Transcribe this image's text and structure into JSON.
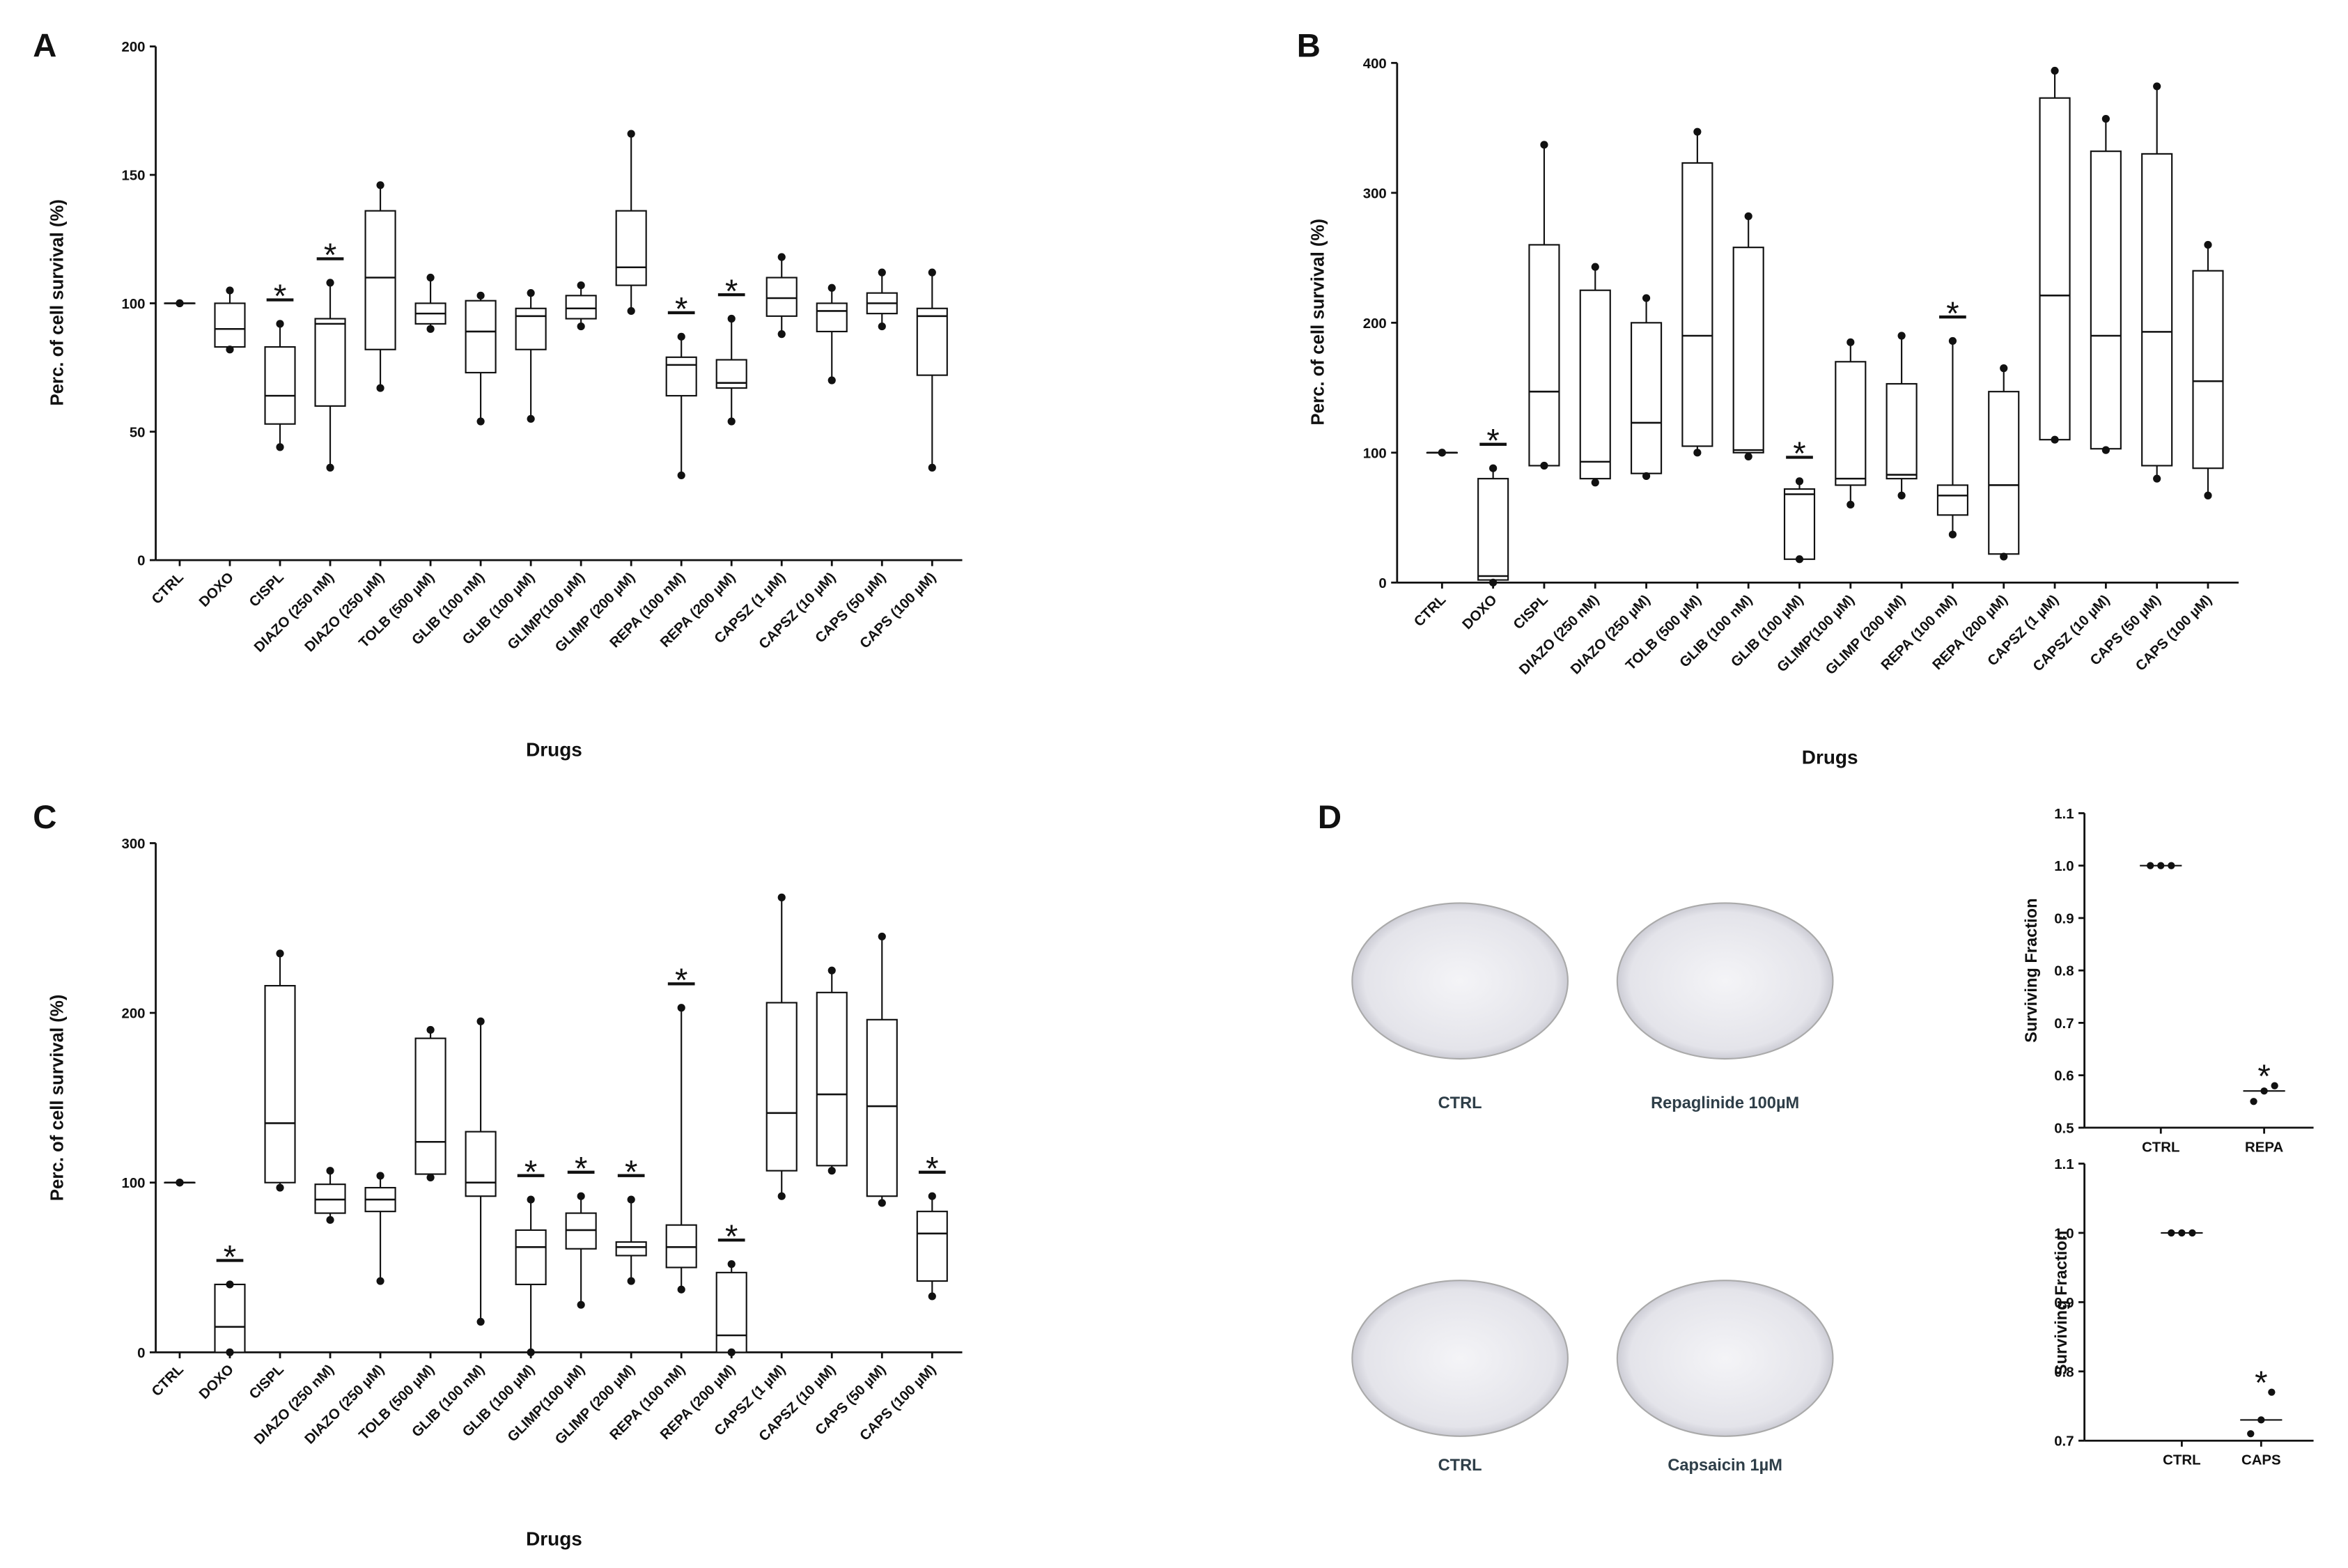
{
  "chart_data": [
    {
      "type": "box",
      "panel": "A",
      "ylabel": "Perc. of cell survival (%)",
      "xlabel": "Drugs",
      "categories": [
        "CTRL",
        "DOXO",
        "CISPL",
        "DIAZO (250 nM)",
        "DIAZO (250 µM)",
        "TOLB (500 µM)",
        "GLIB (100 nM)",
        "GLIB (100 µM)",
        "GLIMP(100 µM)",
        "GLIMP (200 µM)",
        "REPA (100 nM)",
        "REPA (200 µM)",
        "CAPSZ (1 µM)",
        "CAPSZ (10 µM)",
        "CAPS (50 µM)",
        "CAPS (100 µM)"
      ],
      "ylim": [
        0,
        200
      ],
      "yticks": [
        0,
        50,
        100,
        150,
        200
      ],
      "boxes": [
        [
          100,
          100,
          100,
          100,
          100
        ],
        [
          82,
          83,
          90,
          100,
          105
        ],
        [
          44,
          53,
          64,
          83,
          92
        ],
        [
          36,
          60,
          92,
          94,
          108
        ],
        [
          67,
          82,
          110,
          136,
          146
        ],
        [
          90,
          92,
          96,
          100,
          110
        ],
        [
          54,
          73,
          89,
          101,
          103
        ],
        [
          55,
          82,
          95,
          98,
          104
        ],
        [
          91,
          94,
          98,
          103,
          107
        ],
        [
          97,
          107,
          114,
          136,
          166
        ],
        [
          33,
          64,
          76,
          79,
          87
        ],
        [
          54,
          67,
          69,
          78,
          94
        ],
        [
          88,
          95,
          102,
          110,
          118
        ],
        [
          70,
          89,
          97,
          100,
          106
        ],
        [
          91,
          96,
          100,
          104,
          112
        ],
        [
          36,
          72,
          95,
          98,
          112
        ]
      ],
      "significance": [
        null,
        null,
        "*",
        "*",
        null,
        null,
        null,
        null,
        null,
        null,
        "*",
        "*",
        null,
        null,
        null,
        null
      ]
    },
    {
      "type": "box",
      "panel": "B",
      "ylabel": "Perc. of cell survival (%)",
      "xlabel": "Drugs",
      "categories": [
        "CTRL",
        "DOXO",
        "CISPL",
        "DIAZO (250 nM)",
        "DIAZO (250 µM)",
        "TOLB (500 µM)",
        "GLIB (100 nM)",
        "GLIB (100 µM)",
        "GLIMP(100 µM)",
        "GLIMP (200 µM)",
        "REPA (100 nM)",
        "REPA (200 µM)",
        "CAPSZ (1 µM)",
        "CAPSZ (10 µM)",
        "CAPS (50 µM)",
        "CAPS (100 µM)"
      ],
      "ylim": [
        0,
        400
      ],
      "yticks": [
        0,
        100,
        200,
        300,
        400
      ],
      "boxes": [
        [
          100,
          100,
          100,
          100,
          100
        ],
        [
          0,
          2,
          5,
          80,
          88
        ],
        [
          90,
          90,
          147,
          260,
          337
        ],
        [
          77,
          80,
          93,
          225,
          243
        ],
        [
          82,
          84,
          123,
          200,
          219
        ],
        [
          100,
          105,
          190,
          323,
          347
        ],
        [
          97,
          100,
          102,
          258,
          282
        ],
        [
          18,
          18,
          68,
          72,
          78
        ],
        [
          60,
          75,
          80,
          170,
          185
        ],
        [
          67,
          80,
          83,
          153,
          190
        ],
        [
          37,
          52,
          67,
          75,
          186
        ],
        [
          20,
          22,
          75,
          147,
          165
        ],
        [
          110,
          110,
          221,
          373,
          394
        ],
        [
          102,
          103,
          190,
          332,
          357
        ],
        [
          80,
          90,
          193,
          330,
          382
        ],
        [
          67,
          88,
          155,
          240,
          260
        ]
      ],
      "significance": [
        null,
        "*",
        null,
        null,
        null,
        null,
        null,
        "*",
        null,
        null,
        "*",
        null,
        null,
        null,
        null,
        null
      ]
    },
    {
      "type": "box",
      "panel": "C",
      "ylabel": "Perc. of cell survival (%)",
      "xlabel": "Drugs",
      "categories": [
        "CTRL",
        "DOXO",
        "CISPL",
        "DIAZO (250 nM)",
        "DIAZO (250 µM)",
        "TOLB (500 µM)",
        "GLIB (100 nM)",
        "GLIB (100 µM)",
        "GLIMP(100 µM)",
        "GLIMP (200 µM)",
        "REPA (100 nM)",
        "REPA (200 µM)",
        "CAPSZ (1 µM)",
        "CAPSZ (10 µM)",
        "CAPS (50 µM)",
        "CAPS (100 µM)"
      ],
      "ylim": [
        0,
        300
      ],
      "yticks": [
        0,
        100,
        200,
        300
      ],
      "boxes": [
        [
          100,
          100,
          100,
          100,
          100
        ],
        [
          0,
          0,
          15,
          40,
          40
        ],
        [
          97,
          100,
          135,
          216,
          235
        ],
        [
          78,
          82,
          90,
          99,
          107
        ],
        [
          42,
          83,
          90,
          97,
          104
        ],
        [
          103,
          105,
          124,
          185,
          190
        ],
        [
          18,
          92,
          100,
          130,
          195
        ],
        [
          0,
          40,
          62,
          72,
          90
        ],
        [
          28,
          61,
          72,
          82,
          92
        ],
        [
          42,
          57,
          62,
          65,
          90
        ],
        [
          37,
          50,
          62,
          75,
          203
        ],
        [
          0,
          0,
          10,
          47,
          52
        ],
        [
          92,
          107,
          141,
          206,
          268
        ],
        [
          107,
          110,
          152,
          212,
          225
        ],
        [
          88,
          92,
          145,
          196,
          245
        ],
        [
          33,
          42,
          70,
          83,
          92
        ]
      ],
      "significance": [
        null,
        "*",
        null,
        null,
        null,
        null,
        null,
        "*",
        "*",
        "*",
        "*",
        "*",
        null,
        null,
        null,
        "*"
      ]
    },
    {
      "type": "dot",
      "ylabel": "Surviving Fraction",
      "categories": [
        "CTRL",
        "REPA"
      ],
      "ylim": [
        0.5,
        1.1
      ],
      "yticks": [
        0.5,
        0.6,
        0.7,
        0.8,
        0.9,
        {
          "value": 1,
          "label": "1.0"
        },
        1.1
      ],
      "points": [
        [
          1,
          1,
          1
        ],
        [
          0.55,
          0.57,
          0.58
        ]
      ],
      "medians": [
        1,
        0.57
      ],
      "significance": [
        null,
        "*"
      ]
    },
    {
      "type": "dot",
      "ylabel": "Surviving Fraction",
      "categories": [
        "CTRL",
        "CAPS"
      ],
      "ylim": [
        0.7,
        1.1
      ],
      "yticks": [
        0.7,
        0.8,
        0.9,
        {
          "value": 1,
          "label": "1.0"
        },
        1.1
      ],
      "points": [
        [
          1,
          1,
          1
        ],
        [
          0.71,
          0.73,
          0.77
        ]
      ],
      "medians": [
        1,
        0.73
      ],
      "significance": [
        null,
        "*"
      ]
    }
  ],
  "panel_d": {
    "label": "D",
    "dishes": [
      {
        "label": "CTRL"
      },
      {
        "label": "Repaglinide 100µM"
      },
      {
        "label": "CTRL"
      },
      {
        "label": "Capsaicin 1µM"
      }
    ]
  }
}
